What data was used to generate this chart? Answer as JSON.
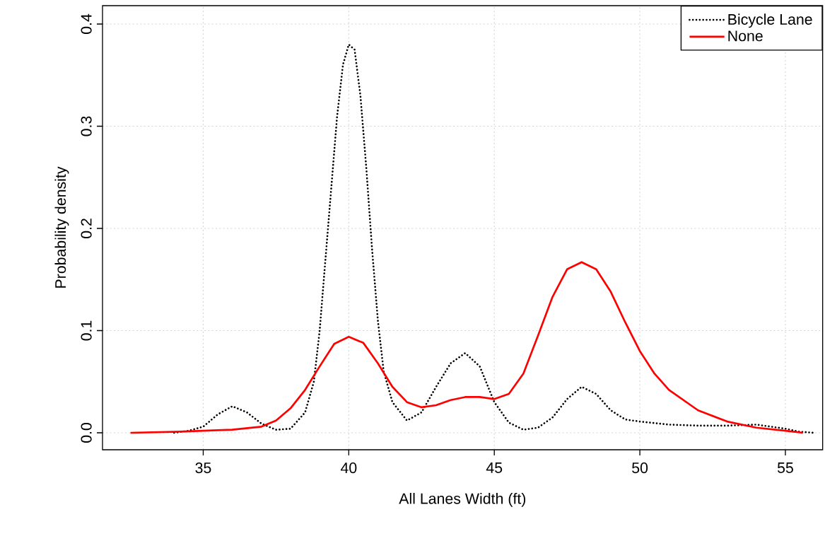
{
  "chart_data": {
    "type": "line",
    "xlabel": "All Lanes Width (ft)",
    "ylabel": "Probability density",
    "xlim": [
      31.54,
      56.28
    ],
    "ylim": [
      -0.0166,
      0.418
    ],
    "xticks": [
      35,
      40,
      45,
      50,
      55
    ],
    "yticks": [
      {
        "value": 0,
        "label": "0.0"
      },
      {
        "value": 0.1,
        "label": "0.1"
      },
      {
        "value": 0.2,
        "label": "0.2"
      },
      {
        "value": 0.3,
        "label": "0.3"
      },
      {
        "value": 0.4,
        "label": "0.4"
      }
    ],
    "grid": true,
    "legend": "top right",
    "marker": "none",
    "series": [
      {
        "name": "Bicycle Lane",
        "color": "#000000",
        "line_style": "dotted",
        "x": [
          34.0,
          34.5,
          35.0,
          35.5,
          36.0,
          36.5,
          37.0,
          37.5,
          38.0,
          38.5,
          38.8,
          39.0,
          39.2,
          39.4,
          39.6,
          39.8,
          40.0,
          40.2,
          40.4,
          40.6,
          40.8,
          41.0,
          41.2,
          41.5,
          42.0,
          42.5,
          43.0,
          43.5,
          44.0,
          44.5,
          45.0,
          45.5,
          46.0,
          46.5,
          47.0,
          47.5,
          48.0,
          48.5,
          49.0,
          49.5,
          50.0,
          51.0,
          52.0,
          53.0,
          54.0,
          55.0,
          55.5,
          56.0
        ],
        "values": [
          0.0,
          0.002,
          0.006,
          0.018,
          0.026,
          0.02,
          0.009,
          0.003,
          0.004,
          0.02,
          0.05,
          0.1,
          0.17,
          0.24,
          0.31,
          0.36,
          0.38,
          0.375,
          0.33,
          0.26,
          0.18,
          0.11,
          0.06,
          0.03,
          0.012,
          0.02,
          0.045,
          0.068,
          0.078,
          0.065,
          0.03,
          0.01,
          0.003,
          0.005,
          0.015,
          0.033,
          0.045,
          0.038,
          0.022,
          0.013,
          0.011,
          0.008,
          0.007,
          0.007,
          0.008,
          0.004,
          0.001,
          0.0
        ]
      },
      {
        "name": "None",
        "color": "#ff0000",
        "line_style": "solid",
        "x": [
          32.5,
          34,
          35,
          36,
          37,
          37.5,
          38,
          38.5,
          39,
          39.5,
          40,
          40.5,
          41,
          41.5,
          42,
          42.5,
          43,
          43.5,
          44,
          44.5,
          45,
          45.5,
          46,
          46.5,
          47,
          47.5,
          48,
          48.5,
          49,
          49.5,
          50,
          50.5,
          51,
          52,
          53,
          54,
          55,
          55.6
        ],
        "values": [
          0,
          0.001,
          0.002,
          0.003,
          0.006,
          0.012,
          0.024,
          0.042,
          0.065,
          0.087,
          0.094,
          0.088,
          0.068,
          0.045,
          0.03,
          0.025,
          0.027,
          0.032,
          0.035,
          0.035,
          0.033,
          0.038,
          0.058,
          0.095,
          0.133,
          0.16,
          0.167,
          0.16,
          0.138,
          0.108,
          0.08,
          0.058,
          0.042,
          0.022,
          0.011,
          0.005,
          0.002,
          0
        ]
      }
    ]
  }
}
